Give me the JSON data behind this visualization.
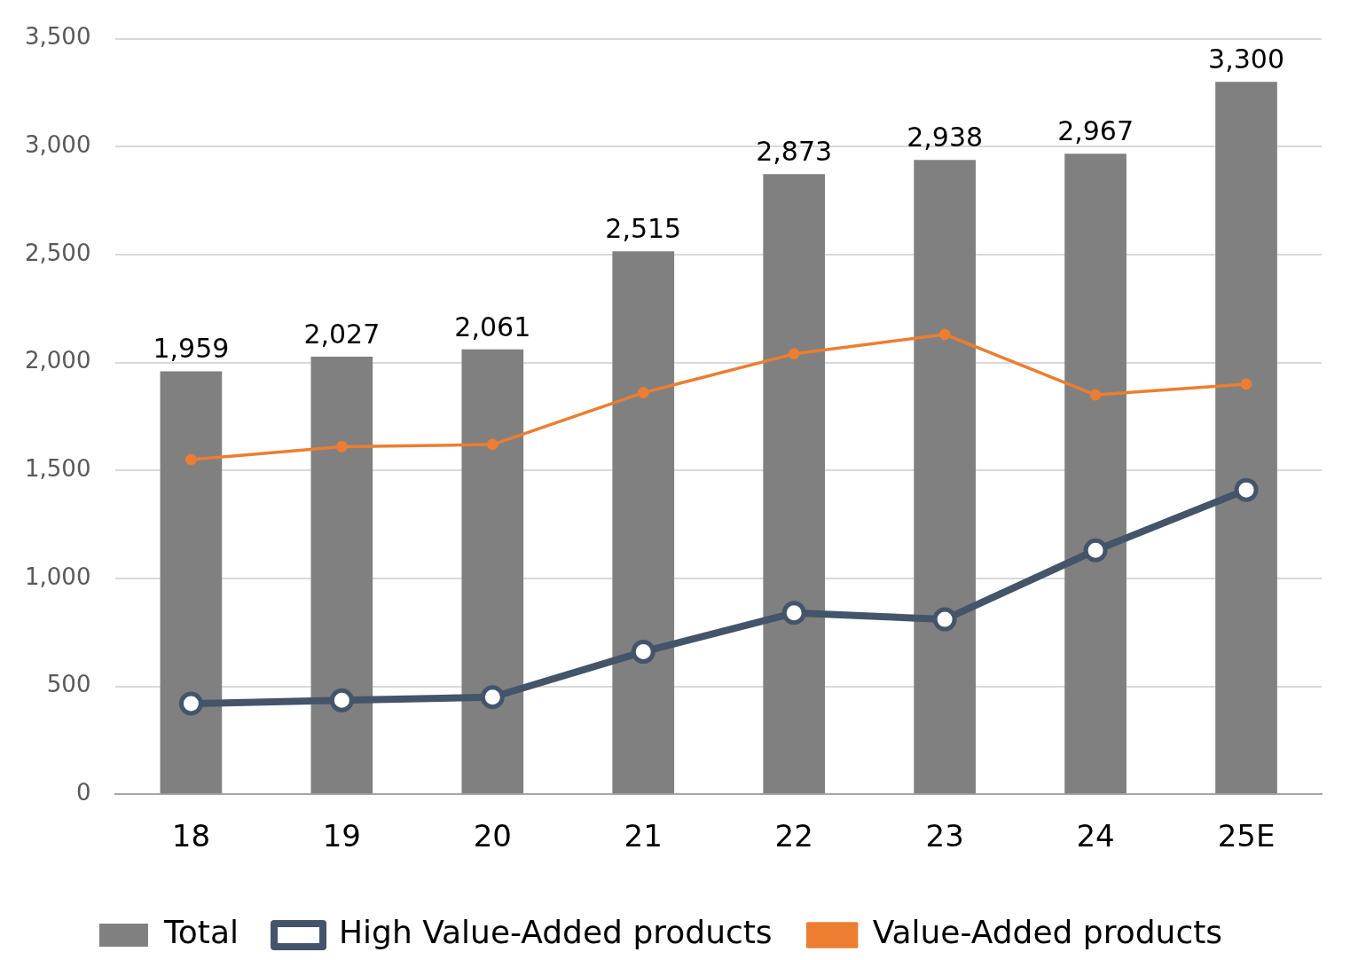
{
  "chart_data": {
    "type": "bar",
    "categories": [
      "18",
      "19",
      "20",
      "21",
      "22",
      "23",
      "24",
      "25E"
    ],
    "series": [
      {
        "name": "Total",
        "color": "#808080",
        "values": [
          1959,
          2027,
          2061,
          2515,
          2873,
          2938,
          2967,
          3300
        ],
        "value_labels": [
          "1,959",
          "2,027",
          "2,061",
          "2,515",
          "2,873",
          "2,938",
          "2,967",
          "3,300"
        ]
      },
      {
        "name": "High Value-Added products",
        "type": "line",
        "color": "#44546a",
        "marker": "circle",
        "values": [
          420,
          435,
          450,
          660,
          840,
          810,
          1130,
          1410
        ]
      },
      {
        "name": "Value-Added products",
        "type": "line",
        "color": "#ed7d31",
        "marker": "circle",
        "values": [
          1550,
          1610,
          1620,
          1860,
          2040,
          2130,
          1850,
          1900
        ]
      }
    ],
    "ylim": [
      0,
      3500
    ],
    "yticks": [
      {
        "value": 0,
        "label": "0"
      },
      {
        "value": 500,
        "label": "500"
      },
      {
        "value": 1000,
        "label": "1,000"
      },
      {
        "value": 1500,
        "label": "1,500"
      },
      {
        "value": 2000,
        "label": "2,000"
      },
      {
        "value": 2500,
        "label": "2,500"
      },
      {
        "value": 3000,
        "label": "3,000"
      },
      {
        "value": 3500,
        "label": "3,500"
      }
    ],
    "grid": "y",
    "legend": "bottom"
  }
}
